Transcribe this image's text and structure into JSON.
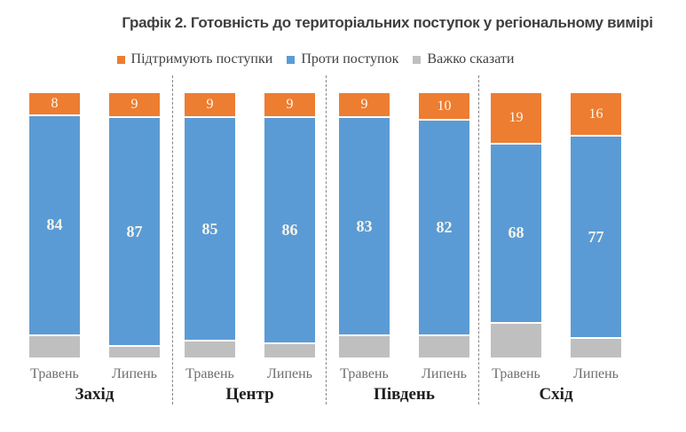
{
  "title": "Графік 2. Готовність до територіальних поступок у регіональному вимірі",
  "legend": [
    {
      "label": "Підтримують поступки",
      "color": "#ED7D31"
    },
    {
      "label": "Проти поступок",
      "color": "#5B9BD5"
    },
    {
      "label": "Важко сказати",
      "color": "#BFBFBF"
    }
  ],
  "chart_data": {
    "type": "bar",
    "stacked": true,
    "percent_stacked": true,
    "title": "Графік 2. Готовність до територіальних поступок у регіональному вимірі",
    "series_names": [
      "Підтримують поступки",
      "Проти поступок",
      "Важко сказати"
    ],
    "colors": {
      "support": "#ED7D31",
      "against": "#5B9BD5",
      "hard": "#BFBFBF"
    },
    "ylim": [
      0,
      100
    ],
    "legend_position": "top",
    "grid": false,
    "value_labels_shown_for": [
      "Підтримують поступки",
      "Проти поступок"
    ],
    "groups": [
      {
        "name": "Захід",
        "bars": [
          {
            "label": "Травень",
            "support": 8,
            "against": 84,
            "hard": 8
          },
          {
            "label": "Липень",
            "support": 9,
            "against": 87,
            "hard": 4
          }
        ]
      },
      {
        "name": "Центр",
        "bars": [
          {
            "label": "Травень",
            "support": 9,
            "against": 85,
            "hard": 6
          },
          {
            "label": "Липень",
            "support": 9,
            "against": 86,
            "hard": 5
          }
        ]
      },
      {
        "name": "Південь",
        "bars": [
          {
            "label": "Травень",
            "support": 9,
            "against": 83,
            "hard": 8
          },
          {
            "label": "Липень",
            "support": 10,
            "against": 82,
            "hard": 8
          }
        ]
      },
      {
        "name": "Схід",
        "bars": [
          {
            "label": "Травень",
            "support": 19,
            "against": 68,
            "hard": 13
          },
          {
            "label": "Липень",
            "support": 16,
            "against": 77,
            "hard": 7
          }
        ]
      }
    ]
  }
}
